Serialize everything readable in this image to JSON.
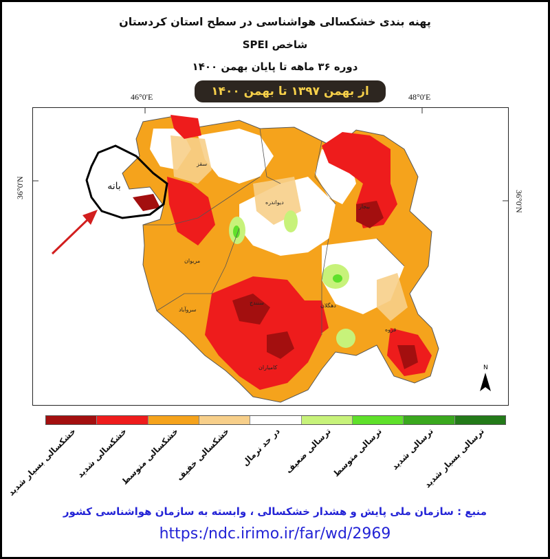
{
  "title_line1": "پهنه بندی خشکسالی هواشناسی در سطح استان کردستان",
  "title_line2": "شاخص  SPEI",
  "title_line3": "دوره  ۳۶ ماهه تا پایان بهمن ۱۴۰۰",
  "period_box": "از بهمن  ۱۳۹۷  تا  بهمن ۱۴۰۰",
  "coords": {
    "lon_left": "46°0'E",
    "lon_right": "48°0'E",
    "lat_left": "36°0'N",
    "lat_right": "36°0'N"
  },
  "map": {
    "highlight_label": "بانه",
    "north_label": "N",
    "city_labels": [
      "سقز",
      "دیواندره",
      "بیجار",
      "مریوان",
      "سروآباد",
      "سنندج",
      "دهگلان",
      "قروه",
      "کامیاران"
    ]
  },
  "legend": [
    {
      "label": "خشکسالی بسیار شدید",
      "color": "#a30f0f"
    },
    {
      "label": "خشکسالی شدید",
      "color": "#ee1c1c"
    },
    {
      "label": "خشکسالی متوسط",
      "color": "#f5a31c"
    },
    {
      "label": "خشکسالی خفیف",
      "color": "#f7cf8a"
    },
    {
      "label": "در حد نرمال",
      "color": "#ffffff"
    },
    {
      "label": "ترسالی ضعیف",
      "color": "#c7f27a"
    },
    {
      "label": "ترسالی متوسط",
      "color": "#5fe02a"
    },
    {
      "label": "ترسالی شدید",
      "color": "#3aa81e"
    },
    {
      "label": "ترسالی بسیار شدید",
      "color": "#237a19"
    }
  ],
  "source_text": "منبع : سازمان ملی پایش و هشدار خشکسالی ، وابسته به سازمان هواشناسی کشور",
  "url_text": "https:/ndc.irimo.ir/far/wd/2969"
}
